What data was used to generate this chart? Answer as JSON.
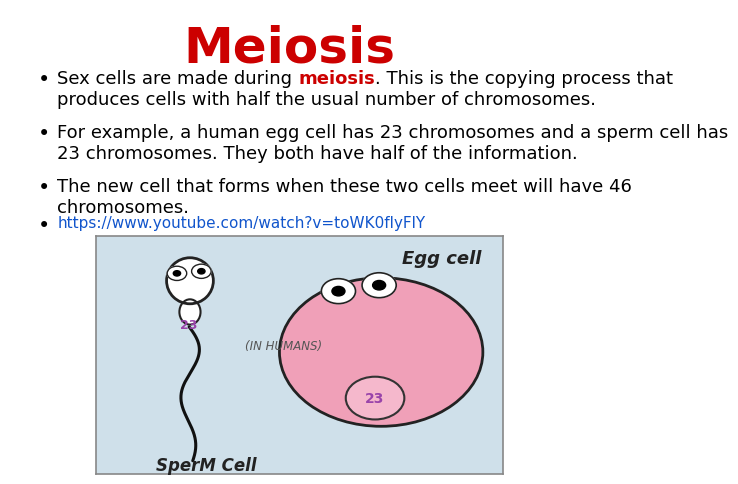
{
  "title": "Meiosis",
  "title_color": "#cc0000",
  "title_fontsize": 36,
  "title_fontweight": "bold",
  "background_color": "#ffffff",
  "bullet1_plain": "Sex cells are made during ",
  "bullet1_highlight": "meiosis",
  "bullet1_rest": ". This is the copying process that",
  "bullet1_line2": "produces cells with half the usual number of chromosomes.",
  "bullet2": "For example, a human egg cell has 23 chromosomes and a sperm cell has\n23 chromosomes. They both have half of the information.",
  "bullet3": "The new cell that forms when these two cells meet will have 46\nchromosomes.",
  "bullet4": "https://www.youtube.com/watch?v=toWK0flyFlY",
  "bullet_fontsize": 13,
  "bullet_color": "#000000",
  "highlight_color": "#cc0000",
  "link_color": "#1155cc",
  "font_family": "DejaVu Sans",
  "img_bg_color": "#cfe0ea",
  "egg_color": "#f0a0b8",
  "sperm_color": "#ffffff",
  "inner_circle_color": "#f5b8cc",
  "number_color": "#9944aa"
}
